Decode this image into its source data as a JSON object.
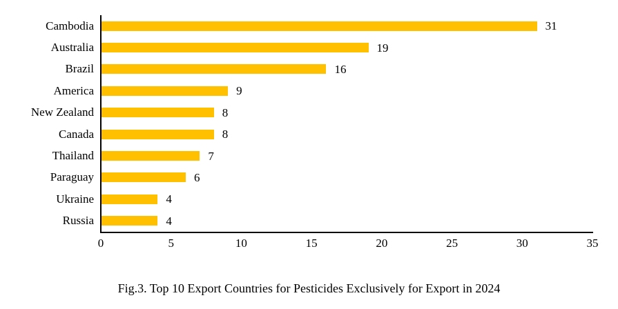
{
  "chart_data": {
    "type": "bar",
    "orientation": "horizontal",
    "categories": [
      "Cambodia",
      "Australia",
      "Brazil",
      "America",
      "New Zealand",
      "Canada",
      "Thailand",
      "Paraguay",
      "Ukraine",
      "Russia"
    ],
    "values": [
      31,
      19,
      16,
      9,
      8,
      8,
      7,
      6,
      4,
      4
    ],
    "title": "Fig.3. Top 10 Export Countries for Pesticides Exclusively for Export in 2024",
    "xlabel": "",
    "ylabel": "",
    "xlim": [
      0,
      35
    ],
    "x_ticks": [
      0,
      5,
      10,
      15,
      20,
      25,
      30,
      35
    ],
    "data_labels": true,
    "grid": false,
    "legend": false,
    "bar_color": "#FFC000",
    "axis_color": "#000000",
    "text_color": "#000000",
    "background_color": "#FFFFFF"
  }
}
